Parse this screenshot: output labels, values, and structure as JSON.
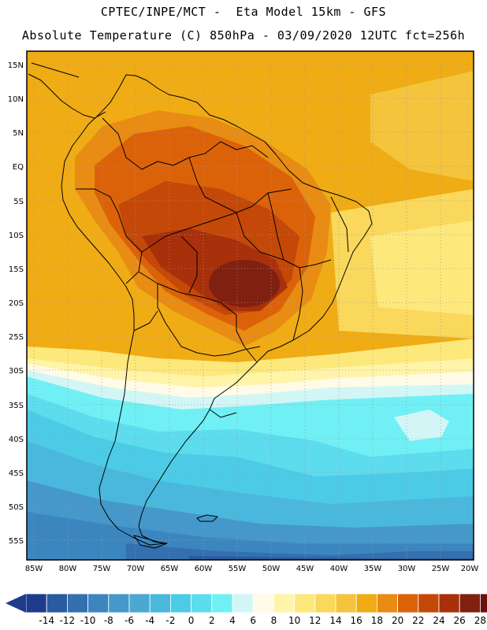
{
  "header": {
    "line1": "CPTEC/INPE/MCT -  Eta Model 15km - GFS",
    "line2": "Absolute Temperature (C) 850hPa - 03/09/2020 12UTC fct=256h"
  },
  "map": {
    "region": "South America",
    "lon_range": [
      -85.5,
      -19.5
    ],
    "lat_range": [
      -58,
      17
    ],
    "lat_ticks": [
      "15N",
      "10N",
      "5N",
      "EQ",
      "5S",
      "10S",
      "15S",
      "20S",
      "25S",
      "30S",
      "35S",
      "40S",
      "45S",
      "50S",
      "55S"
    ],
    "lon_ticks": [
      "85W",
      "80W",
      "75W",
      "70W",
      "65W",
      "60W",
      "55W",
      "50W",
      "45W",
      "40W",
      "35W",
      "30W",
      "25W",
      "20W"
    ]
  },
  "colorbar": {
    "labels": [
      "-14",
      "-12",
      "-10",
      "-8",
      "-6",
      "-4",
      "-2",
      "0",
      "2",
      "4",
      "6",
      "8",
      "10",
      "12",
      "14",
      "16",
      "18",
      "20",
      "22",
      "24",
      "26",
      "28"
    ],
    "colors": [
      "#1f3c8c",
      "#2a5aa0",
      "#3470b0",
      "#3c86bf",
      "#4598c9",
      "#4aa8d2",
      "#4ab8dc",
      "#4ccbe6",
      "#5ddcee",
      "#70f0f4",
      "#d2f6f6",
      "#fffbe6",
      "#fff4a8",
      "#fde87c",
      "#f9d85c",
      "#f4c43c",
      "#f0ac14",
      "#e88c14",
      "#dc620a",
      "#c44808",
      "#a8300a",
      "#802010",
      "#6c1010"
    ]
  }
}
